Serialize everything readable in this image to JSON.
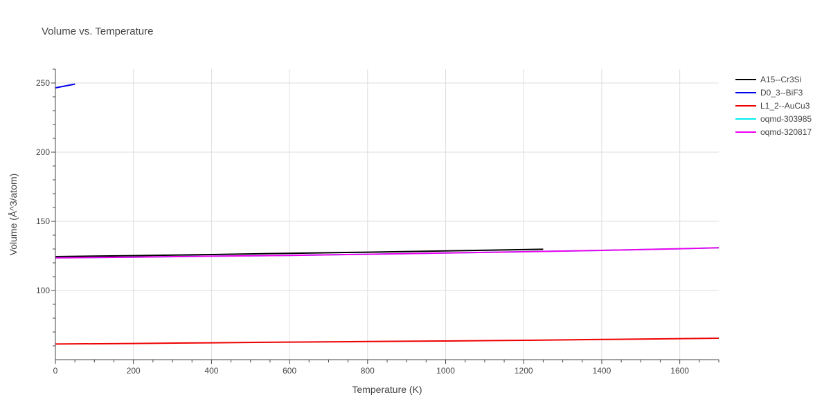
{
  "chart_data": {
    "type": "line",
    "title": "Volume vs. Temperature",
    "xlabel": "Temperature (K)",
    "ylabel": "Volume (Å^3/atom)",
    "xlim": [
      0,
      1700
    ],
    "ylim": [
      50,
      260
    ],
    "xticks": [
      0,
      200,
      400,
      600,
      800,
      1000,
      1200,
      1400,
      1600
    ],
    "yticks": [
      100,
      150,
      200,
      250
    ],
    "grid": true,
    "legend_position": "top-right",
    "series": [
      {
        "name": "A15--Cr3Si",
        "color": "#000000",
        "x": [
          0,
          200,
          400,
          600,
          800,
          1000,
          1250
        ],
        "y": [
          124.5,
          125.2,
          126.0,
          126.9,
          127.7,
          128.6,
          129.8
        ]
      },
      {
        "name": "D0_3--BiF3",
        "color": "#0000ee",
        "x": [
          0,
          50
        ],
        "y": [
          246.5,
          249.2
        ]
      },
      {
        "name": "L1_2--AuCu3",
        "color": "#ee0000",
        "x": [
          0,
          200,
          400,
          600,
          800,
          1000,
          1200,
          1400,
          1600,
          1700
        ],
        "y": [
          61.3,
          61.7,
          62.2,
          62.7,
          63.1,
          63.5,
          64.0,
          64.6,
          65.2,
          65.5
        ]
      },
      {
        "name": "oqmd-303985",
        "color": "#00eeee",
        "x": [
          0,
          200,
          400,
          600,
          800,
          1000,
          1200,
          1400,
          1600,
          1700
        ],
        "y": [
          123.6,
          124.1,
          124.8,
          125.4,
          126.2,
          127.1,
          128.0,
          129.0,
          130.2,
          130.9
        ]
      },
      {
        "name": "oqmd-320817",
        "color": "#ee00ee",
        "x": [
          0,
          200,
          400,
          600,
          800,
          1000,
          1200,
          1400,
          1600,
          1700
        ],
        "y": [
          123.6,
          124.1,
          124.8,
          125.4,
          126.2,
          127.1,
          128.0,
          129.0,
          130.2,
          130.9
        ]
      }
    ]
  }
}
